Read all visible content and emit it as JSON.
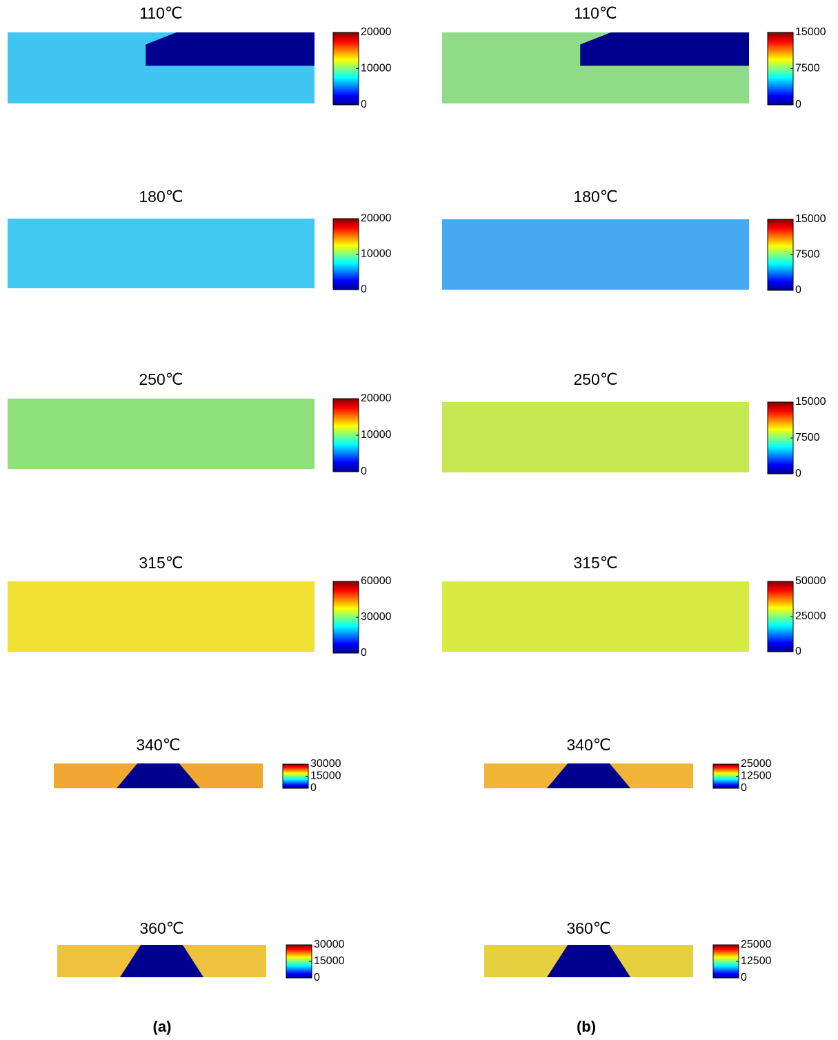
{
  "chart_data": [
    {
      "type": "heatmap",
      "title": "110℃",
      "clim": [
        0,
        20000
      ],
      "cticks": [
        0,
        10000,
        20000
      ],
      "color": "#3fc6f2",
      "mask": "notch"
    },
    {
      "type": "heatmap",
      "title": "110℃",
      "clim": [
        0,
        15000
      ],
      "cticks": [
        0,
        7500,
        15000
      ],
      "color": "#8fdc86",
      "mask": "notch"
    },
    {
      "type": "heatmap",
      "title": "180℃",
      "clim": [
        0,
        20000
      ],
      "cticks": [
        0,
        10000,
        20000
      ],
      "color": "#3fc8f0"
    },
    {
      "type": "heatmap",
      "title": "180℃",
      "clim": [
        0,
        15000
      ],
      "cticks": [
        0,
        7500,
        15000
      ],
      "color": "#45a8f0"
    },
    {
      "type": "heatmap",
      "title": "250℃",
      "clim": [
        0,
        20000
      ],
      "cticks": [
        0,
        10000,
        20000
      ],
      "color": "#8ee07a"
    },
    {
      "type": "heatmap",
      "title": "250℃",
      "clim": [
        0,
        15000
      ],
      "cticks": [
        0,
        7500,
        15000
      ],
      "color": "#c6e852"
    },
    {
      "type": "heatmap",
      "title": "315℃",
      "clim": [
        0,
        60000
      ],
      "cticks": [
        0,
        30000,
        60000
      ],
      "color": "#f2e032"
    },
    {
      "type": "heatmap",
      "title": "315℃",
      "clim": [
        0,
        50000
      ],
      "cticks": [
        0,
        25000,
        50000
      ],
      "color": "#d6ea42"
    },
    {
      "type": "heatmap",
      "title": "340℃",
      "clim": [
        0,
        30000
      ],
      "cticks": [
        0,
        15000,
        30000
      ],
      "color": "#f0a832",
      "mask": "trapezoid"
    },
    {
      "type": "heatmap",
      "title": "340℃",
      "clim": [
        0,
        25000
      ],
      "cticks": [
        0,
        12500,
        25000
      ],
      "color": "#f0b436",
      "mask": "trapezoid"
    },
    {
      "type": "heatmap",
      "title": "360℃",
      "clim": [
        0,
        30000
      ],
      "cticks": [
        0,
        15000,
        30000
      ],
      "color": "#eec23c",
      "mask": "trapezoid"
    },
    {
      "type": "heatmap",
      "title": "360℃",
      "clim": [
        0,
        25000
      ],
      "cticks": [
        0,
        12500,
        25000
      ],
      "color": "#e6d040",
      "mask": "trapezoid"
    }
  ],
  "captions": [
    "(a)",
    "(b)"
  ]
}
